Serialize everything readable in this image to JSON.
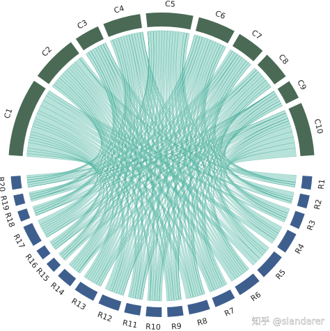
{
  "chart_data": {
    "type": "chord",
    "columns": [
      "C1",
      "C2",
      "C3",
      "C4",
      "C5",
      "C6",
      "C7",
      "C8",
      "C9",
      "C10"
    ],
    "rows": [
      "R1",
      "R2",
      "R3",
      "R4",
      "R5",
      "R6",
      "R7",
      "R8",
      "R9",
      "R10",
      "R11",
      "R12",
      "R13",
      "R14",
      "R15",
      "R16",
      "R17",
      "R18",
      "R19",
      "R20"
    ],
    "matrix": [
      [
        0,
        1,
        0,
        0,
        1,
        0,
        0,
        0,
        0,
        3
      ],
      [
        1,
        0,
        0,
        0,
        0,
        1,
        0,
        0,
        1,
        2
      ],
      [
        1,
        0,
        1,
        0,
        0,
        0,
        1,
        1,
        0,
        2
      ],
      [
        2,
        0,
        0,
        1,
        1,
        1,
        0,
        0,
        1,
        2
      ],
      [
        2,
        2,
        0,
        0,
        2,
        0,
        1,
        1,
        0,
        2
      ],
      [
        2,
        1,
        1,
        1,
        1,
        1,
        0,
        1,
        0,
        1
      ],
      [
        1,
        1,
        0,
        1,
        1,
        1,
        1,
        0,
        1,
        1
      ],
      [
        2,
        1,
        0,
        1,
        1,
        1,
        1,
        0,
        1,
        0
      ],
      [
        1,
        1,
        1,
        0,
        1,
        1,
        0,
        1,
        0,
        0
      ],
      [
        1,
        0,
        0,
        1,
        1,
        0,
        1,
        1,
        0,
        1
      ],
      [
        1,
        1,
        1,
        0,
        1,
        1,
        0,
        0,
        1,
        0
      ],
      [
        2,
        1,
        0,
        1,
        1,
        1,
        1,
        1,
        0,
        0
      ],
      [
        1,
        1,
        1,
        1,
        1,
        1,
        0,
        1,
        1,
        0
      ],
      [
        1,
        1,
        1,
        1,
        1,
        0,
        0,
        0,
        0,
        1
      ],
      [
        1,
        0,
        0,
        1,
        0,
        1,
        0,
        0,
        0,
        1
      ],
      [
        1,
        1,
        0,
        0,
        1,
        0,
        1,
        0,
        0,
        0
      ],
      [
        2,
        1,
        1,
        1,
        1,
        1,
        0,
        1,
        0,
        0
      ],
      [
        1,
        1,
        0,
        1,
        0,
        0,
        1,
        0,
        0,
        0
      ],
      [
        1,
        0,
        1,
        0,
        0,
        1,
        0,
        0,
        0,
        1
      ],
      [
        1,
        1,
        0,
        1,
        0,
        0,
        1,
        1,
        0,
        0
      ]
    ],
    "column_color": "#4a6a55",
    "row_color": "#3e5f8e",
    "link_color": "#7ccbbb",
    "link_edge_color": "#2f9e88",
    "watermark": "知乎 @slandarer"
  }
}
